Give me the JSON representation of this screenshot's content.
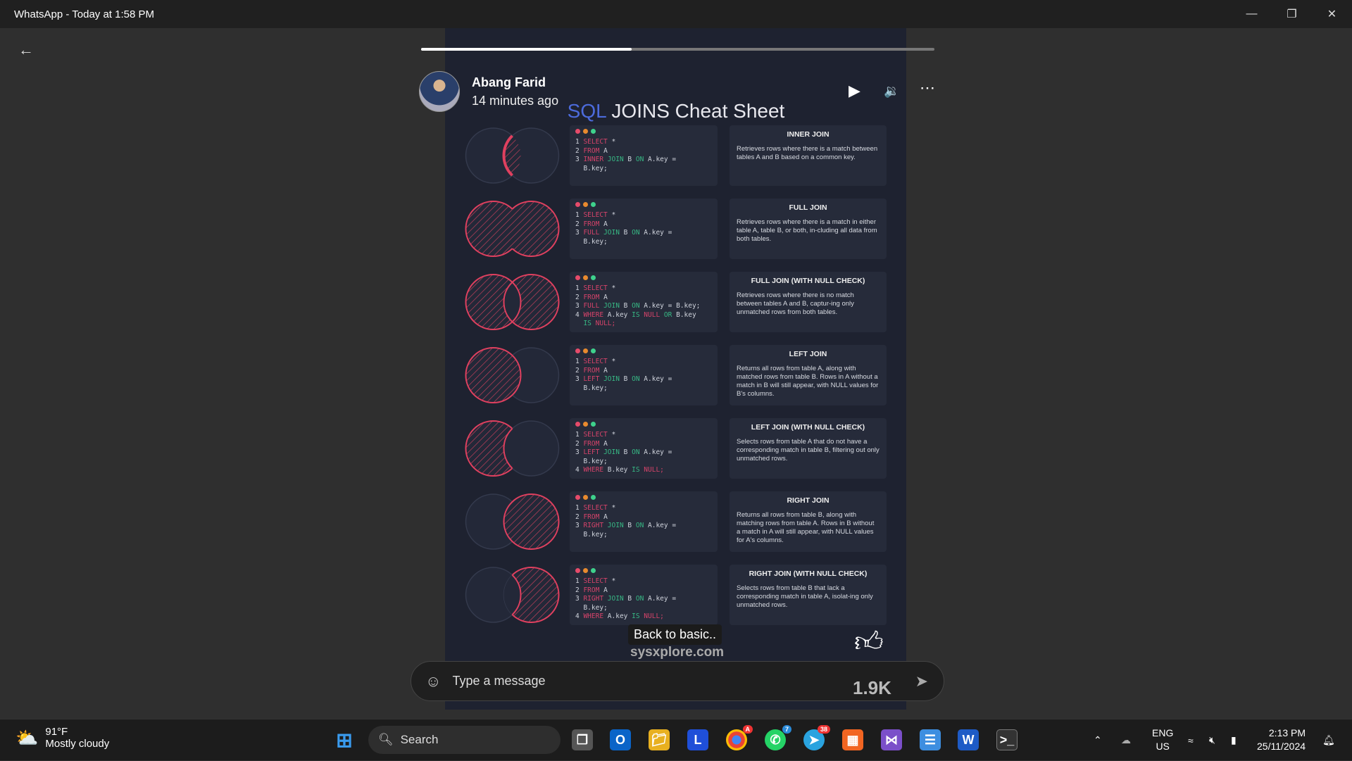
{
  "window": {
    "title": "WhatsApp - Today at 1:58 PM"
  },
  "status": {
    "sender": "Abang Farid",
    "time": "14 minutes ago",
    "progress_percent": 41
  },
  "sheet": {
    "title_accent": "SQL",
    "title_rest": " JOINS Cheat Sheet",
    "colors": {
      "accent": "#4c6bdc",
      "highlight": "#e0405f",
      "keyword_red": "#d6436a",
      "keyword_green": "#37b985"
    },
    "rows": [
      {
        "highlight": "inner",
        "code": [
          {
            "n": "1",
            "t": "SELECT *"
          },
          {
            "n": "2",
            "t": "FROM A"
          },
          {
            "n": "3",
            "t": "INNER JOIN B ON A.key ="
          },
          {
            "n": "",
            "t": "B.key;"
          }
        ],
        "title": "INNER JOIN",
        "desc": "Retrieves rows where there is a match between tables A and B based on a common key."
      },
      {
        "highlight": "full",
        "code": [
          {
            "n": "1",
            "t": "SELECT *"
          },
          {
            "n": "2",
            "t": "FROM A"
          },
          {
            "n": "3",
            "t": "FULL JOIN B ON A.key ="
          },
          {
            "n": "",
            "t": "B.key;"
          }
        ],
        "title": "FULL JOIN",
        "desc": "Retrieves rows where there is a match in either table A, table B, or both, in-cluding all data from both tables."
      },
      {
        "highlight": "outer",
        "code": [
          {
            "n": "1",
            "t": "SELECT *"
          },
          {
            "n": "2",
            "t": "FROM A"
          },
          {
            "n": "3",
            "t": "FULL JOIN B ON A.key = B.key;"
          },
          {
            "n": "4",
            "t": "WHERE A.key IS NULL OR B.key"
          },
          {
            "n": "",
            "t": "IS NULL;"
          }
        ],
        "title": "FULL JOIN (WITH NULL CHECK)",
        "desc": "Retrieves rows where there is no match between tables A and B, captur-ing only unmatched rows from both tables."
      },
      {
        "highlight": "left",
        "code": [
          {
            "n": "1",
            "t": "SELECT *"
          },
          {
            "n": "2",
            "t": "FROM A"
          },
          {
            "n": "3",
            "t": "LEFT JOIN B ON A.key ="
          },
          {
            "n": "",
            "t": "B.key;"
          }
        ],
        "title": "LEFT JOIN",
        "desc": "Returns all rows from table A, along with matched rows from table B. Rows in A without a match in B will still appear, with NULL values for B's columns."
      },
      {
        "highlight": "left-only",
        "code": [
          {
            "n": "1",
            "t": "SELECT *"
          },
          {
            "n": "2",
            "t": "FROM A"
          },
          {
            "n": "3",
            "t": "LEFT JOIN B ON A.key ="
          },
          {
            "n": "",
            "t": "B.key;"
          },
          {
            "n": "4",
            "t": "WHERE B.key IS NULL;"
          }
        ],
        "title": "LEFT JOIN (WITH NULL CHECK)",
        "desc": "Selects rows from table A that do not have a corresponding match in table B, filtering out only unmatched rows."
      },
      {
        "highlight": "right",
        "code": [
          {
            "n": "1",
            "t": "SELECT *"
          },
          {
            "n": "2",
            "t": "FROM A"
          },
          {
            "n": "3",
            "t": "RIGHT JOIN B ON A.key ="
          },
          {
            "n": "",
            "t": "B.key;"
          }
        ],
        "title": "RIGHT JOIN",
        "desc": "Returns all rows from table B, along with matching rows from table A. Rows in B without a match in A will still appear, with NULL values for A's columns."
      },
      {
        "highlight": "right-only",
        "code": [
          {
            "n": "1",
            "t": "SELECT *"
          },
          {
            "n": "2",
            "t": "FROM A"
          },
          {
            "n": "3",
            "t": "RIGHT JOIN B ON A.key ="
          },
          {
            "n": "",
            "t": "B.key;"
          },
          {
            "n": "4",
            "t": "WHERE A.key IS NULL;"
          }
        ],
        "title": "RIGHT JOIN (WITH NULL CHECK)",
        "desc": "Selects rows from table B that lack a corresponding match in table A, isolat-ing only unmatched rows."
      }
    ]
  },
  "caption": "Back to basic..",
  "watermark": "sysxplore.com",
  "likes": "1.9K",
  "composer": {
    "placeholder": "Type a message"
  },
  "taskbar": {
    "weather_temp": "91°F",
    "weather_desc": "Mostly cloudy",
    "search_label": "Search",
    "whatsapp_badge": "7",
    "telegram_badge": "38",
    "chrome_badge": "A",
    "lang_line1": "ENG",
    "lang_line2": "US",
    "time": "2:13 PM",
    "date": "25/11/2024"
  }
}
